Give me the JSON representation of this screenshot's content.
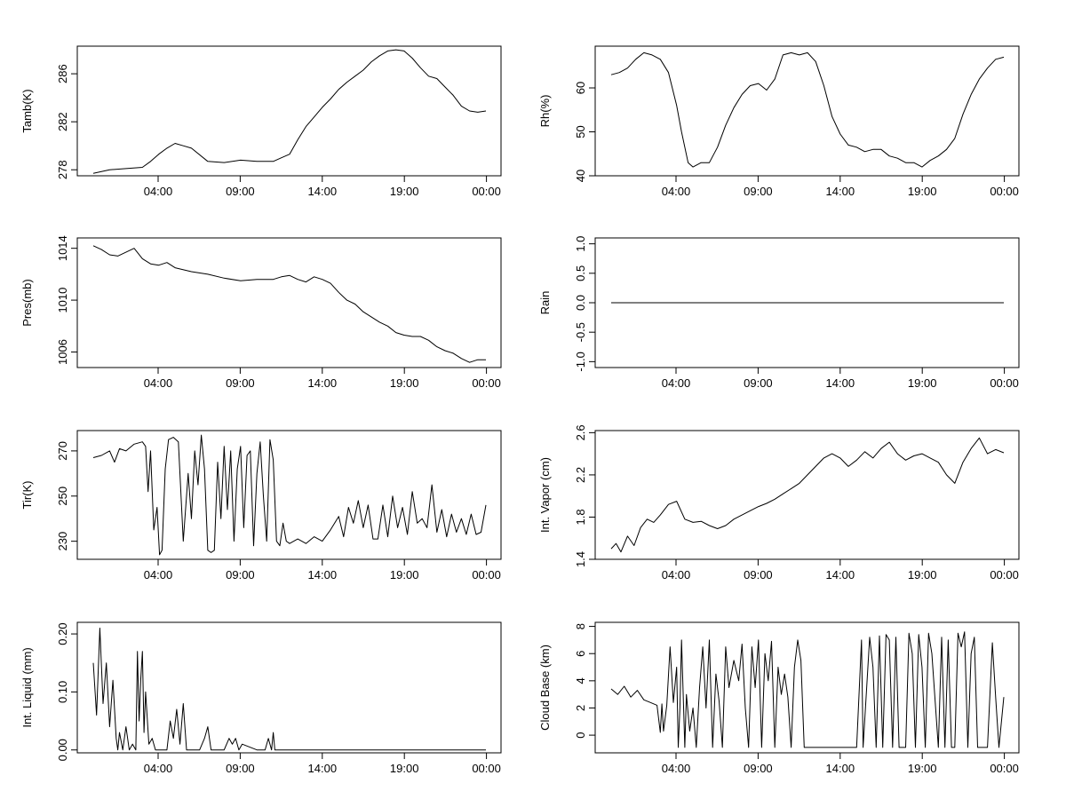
{
  "chart_data": [
    {
      "id": "tamb",
      "type": "line",
      "ylabel": "Tamb(K)",
      "ylim": [
        277.5,
        288.3
      ],
      "xticks": [
        "04:00",
        "09:00",
        "14:00",
        "19:00",
        "00:00"
      ],
      "yticks": [
        "278",
        "282",
        "286"
      ],
      "grid": false,
      "x_hours": [
        0,
        1,
        2,
        3,
        3.5,
        4,
        4.5,
        5,
        5.5,
        6,
        7,
        8,
        9,
        10,
        11,
        11.5,
        12,
        12.5,
        13,
        13.5,
        14,
        14.5,
        15,
        15.5,
        16,
        16.5,
        17,
        17.5,
        18,
        18.5,
        19,
        19.5,
        20,
        20.5,
        21,
        21.5,
        22,
        22.5,
        23,
        23.5,
        24
      ],
      "values": [
        277.7,
        278.0,
        278.1,
        278.2,
        278.7,
        279.3,
        279.8,
        280.2,
        280.0,
        279.8,
        278.7,
        278.6,
        278.8,
        278.7,
        278.7,
        279.0,
        279.3,
        280.5,
        281.6,
        282.4,
        283.2,
        283.9,
        284.7,
        285.3,
        285.8,
        286.3,
        287.0,
        287.5,
        287.9,
        288.0,
        287.9,
        287.3,
        286.5,
        285.8,
        285.6,
        284.9,
        284.2,
        283.3,
        282.9,
        282.8,
        282.9
      ]
    },
    {
      "id": "rh",
      "type": "line",
      "ylabel": "Rh(%)",
      "ylim": [
        40,
        69.5
      ],
      "xticks": [
        "04:00",
        "09:00",
        "14:00",
        "19:00",
        "00:00"
      ],
      "yticks": [
        "40",
        "50",
        "60"
      ],
      "grid": false,
      "x_hours": [
        0,
        0.5,
        1,
        1.5,
        2,
        2.5,
        3,
        3.5,
        4,
        4.3,
        4.7,
        5,
        5.5,
        6,
        6.5,
        7,
        7.5,
        8,
        8.5,
        9,
        9.5,
        10,
        10.5,
        11,
        11.5,
        12,
        12.5,
        13,
        13.5,
        14,
        14.5,
        15,
        15.5,
        16,
        16.5,
        17,
        17.5,
        18,
        18.5,
        19,
        19.5,
        20,
        20.5,
        21,
        21.5,
        22,
        22.5,
        23,
        23.5,
        24
      ],
      "values": [
        63.0,
        63.5,
        64.5,
        66.5,
        68.0,
        67.5,
        66.5,
        63.5,
        56.0,
        50.0,
        43.0,
        42.0,
        43.0,
        43.0,
        46.5,
        51.5,
        55.5,
        58.5,
        60.5,
        61.0,
        59.5,
        62.0,
        67.5,
        68.0,
        67.5,
        68.0,
        66.0,
        60.5,
        53.5,
        49.5,
        47.0,
        46.5,
        45.5,
        46.0,
        46.0,
        44.5,
        44.0,
        43.0,
        43.0,
        42.0,
        43.5,
        44.5,
        46.0,
        48.5,
        54.0,
        58.5,
        62.0,
        64.5,
        66.5,
        67.0
      ]
    },
    {
      "id": "pres",
      "type": "line",
      "ylabel": "Pres(mb)",
      "ylim": [
        1004.8,
        1014.8
      ],
      "xticks": [
        "04:00",
        "09:00",
        "14:00",
        "19:00",
        "00:00"
      ],
      "yticks": [
        "1006",
        "1010",
        "1014"
      ],
      "grid": false,
      "x_hours": [
        0,
        0.5,
        1,
        1.5,
        2,
        2.5,
        3,
        3.5,
        4,
        4.5,
        5,
        6,
        7,
        8,
        9,
        10,
        11,
        11.5,
        12,
        12.5,
        13,
        13.5,
        14,
        14.5,
        15,
        15.5,
        16,
        16.5,
        17,
        17.5,
        18,
        18.5,
        19,
        19.5,
        20,
        20.5,
        21,
        21.5,
        22,
        22.5,
        23,
        23.5,
        24
      ],
      "values": [
        1014.2,
        1013.9,
        1013.5,
        1013.4,
        1013.7,
        1014.0,
        1013.2,
        1012.8,
        1012.7,
        1012.9,
        1012.5,
        1012.2,
        1012.0,
        1011.7,
        1011.5,
        1011.6,
        1011.6,
        1011.8,
        1011.9,
        1011.6,
        1011.4,
        1011.8,
        1011.6,
        1011.3,
        1010.6,
        1010.0,
        1009.7,
        1009.1,
        1008.7,
        1008.3,
        1008.0,
        1007.5,
        1007.3,
        1007.2,
        1007.2,
        1006.9,
        1006.4,
        1006.1,
        1005.9,
        1005.5,
        1005.2,
        1005.4,
        1005.4
      ]
    },
    {
      "id": "rain",
      "type": "line",
      "ylabel": "Rain",
      "ylim": [
        -1.1,
        1.1
      ],
      "xticks": [
        "04:00",
        "09:00",
        "14:00",
        "19:00",
        "00:00"
      ],
      "yticks": [
        "-1.0",
        "-0.5",
        "0.0",
        "0.5",
        "1.0"
      ],
      "grid": false,
      "x_hours": [
        0,
        24
      ],
      "values": [
        0,
        0
      ]
    },
    {
      "id": "tir",
      "type": "line",
      "ylabel": "Tir(K)",
      "ylim": [
        222,
        279
      ],
      "xticks": [
        "04:00",
        "09:00",
        "14:00",
        "19:00",
        "00:00"
      ],
      "yticks": [
        "230",
        "250",
        "270"
      ],
      "grid": false,
      "x_hours": [
        0,
        0.5,
        1,
        1.3,
        1.6,
        2,
        2.5,
        3,
        3.2,
        3.35,
        3.5,
        3.7,
        3.9,
        4.05,
        4.2,
        4.4,
        4.6,
        4.9,
        5.2,
        5.5,
        5.8,
        6.0,
        6.2,
        6.4,
        6.6,
        6.8,
        7.0,
        7.2,
        7.4,
        7.6,
        7.8,
        8.0,
        8.2,
        8.4,
        8.6,
        8.8,
        9.0,
        9.2,
        9.4,
        9.6,
        9.8,
        10.0,
        10.2,
        10.4,
        10.6,
        10.8,
        11.0,
        11.2,
        11.4,
        11.6,
        11.8,
        12.0,
        12.5,
        13.0,
        13.5,
        14.0,
        14.5,
        15.0,
        15.3,
        15.6,
        15.9,
        16.2,
        16.5,
        16.8,
        17.1,
        17.4,
        17.7,
        18.0,
        18.3,
        18.6,
        18.9,
        19.2,
        19.5,
        19.8,
        20.1,
        20.4,
        20.7,
        21.0,
        21.3,
        21.6,
        21.9,
        22.2,
        22.5,
        22.8,
        23.1,
        23.4,
        23.7,
        24
      ],
      "values": [
        267,
        268,
        270,
        265,
        271,
        270,
        273,
        274,
        272,
        252,
        270,
        235,
        245,
        224,
        226,
        262,
        275,
        276,
        274,
        230,
        260,
        240,
        270,
        255,
        277,
        262,
        226,
        225,
        226,
        265,
        240,
        272,
        244,
        270,
        230,
        262,
        272,
        236,
        268,
        270,
        228,
        260,
        274,
        250,
        230,
        275,
        266,
        230,
        228,
        238,
        230,
        229,
        231,
        229,
        232,
        230,
        235,
        241,
        232,
        245,
        238,
        248,
        236,
        246,
        231,
        231,
        246,
        232,
        250,
        236,
        245,
        233,
        252,
        238,
        240,
        236,
        255,
        234,
        244,
        232,
        242,
        234,
        240,
        233,
        242,
        233,
        234,
        246
      ]
    },
    {
      "id": "vapor",
      "type": "line",
      "ylabel": "Int. Vapor (cm)",
      "ylim": [
        1.4,
        2.62
      ],
      "xticks": [
        "04:00",
        "09:00",
        "14:00",
        "19:00",
        "00:00"
      ],
      "yticks": [
        "1.4",
        "1.8",
        "2.2",
        "2.6"
      ],
      "grid": false,
      "x_hours": [
        0,
        0.3,
        0.6,
        1.0,
        1.4,
        1.8,
        2.2,
        2.6,
        3.0,
        3.5,
        4.0,
        4.5,
        5.0,
        5.5,
        6.0,
        6.5,
        7.0,
        7.5,
        8.0,
        8.5,
        9.0,
        9.5,
        10.0,
        10.5,
        11.0,
        11.5,
        12.0,
        12.5,
        13.0,
        13.5,
        14.0,
        14.5,
        15.0,
        15.5,
        16.0,
        16.5,
        17.0,
        17.5,
        18.0,
        18.5,
        19.0,
        19.5,
        20.0,
        20.5,
        21.0,
        21.5,
        22.0,
        22.5,
        23.0,
        23.5,
        24
      ],
      "values": [
        1.5,
        1.55,
        1.47,
        1.62,
        1.53,
        1.7,
        1.78,
        1.75,
        1.82,
        1.92,
        1.95,
        1.78,
        1.75,
        1.76,
        1.72,
        1.69,
        1.72,
        1.78,
        1.82,
        1.86,
        1.9,
        1.93,
        1.97,
        2.02,
        2.07,
        2.12,
        2.2,
        2.28,
        2.36,
        2.4,
        2.36,
        2.28,
        2.34,
        2.42,
        2.36,
        2.45,
        2.51,
        2.4,
        2.34,
        2.38,
        2.4,
        2.36,
        2.32,
        2.2,
        2.12,
        2.32,
        2.45,
        2.55,
        2.4,
        2.44,
        2.41
      ]
    },
    {
      "id": "liquid",
      "type": "line",
      "ylabel": "Int. Liquid (mm)",
      "ylim": [
        -0.005,
        0.22
      ],
      "xticks": [
        "04:00",
        "09:00",
        "14:00",
        "19:00",
        "00:00"
      ],
      "yticks": [
        "0.00",
        "0.10",
        "0.20"
      ],
      "grid": false,
      "x_hours": [
        0,
        0.2,
        0.4,
        0.6,
        0.8,
        1.0,
        1.2,
        1.4,
        1.5,
        1.6,
        1.8,
        2.0,
        2.2,
        2.4,
        2.6,
        2.7,
        2.8,
        2.9,
        3.0,
        3.1,
        3.2,
        3.4,
        3.6,
        3.8,
        4.0,
        4.5,
        4.7,
        4.9,
        5.1,
        5.3,
        5.5,
        5.7,
        6.0,
        6.5,
        6.8,
        7.0,
        7.2,
        8.0,
        8.3,
        8.5,
        8.7,
        8.9,
        9.1,
        10.0,
        10.5,
        10.7,
        10.9,
        11.0,
        11.1,
        11.3,
        12.0,
        18.0,
        24
      ],
      "values": [
        0.15,
        0.06,
        0.21,
        0.08,
        0.15,
        0.04,
        0.12,
        0.02,
        0.0,
        0.03,
        0.0,
        0.04,
        0.0,
        0.01,
        0.0,
        0.17,
        0.05,
        0.12,
        0.17,
        0.03,
        0.1,
        0.01,
        0.02,
        0.0,
        0.0,
        0.0,
        0.05,
        0.02,
        0.07,
        0.01,
        0.08,
        0.0,
        0.0,
        0.0,
        0.02,
        0.04,
        0.0,
        0.0,
        0.02,
        0.01,
        0.02,
        0.0,
        0.01,
        0.0,
        0.0,
        0.02,
        0.0,
        0.03,
        0.0,
        0.0,
        0.0,
        0.0,
        0.0
      ]
    },
    {
      "id": "cloudbase",
      "type": "line",
      "ylabel": "Cloud Base (km)",
      "ylim": [
        -1.3,
        8.3
      ],
      "xticks": [
        "04:00",
        "09:00",
        "14:00",
        "19:00",
        "00:00"
      ],
      "yticks": [
        "0",
        "2",
        "4",
        "6",
        "8"
      ],
      "grid": false,
      "x_hours": [
        0,
        0.4,
        0.8,
        1.2,
        1.6,
        2.0,
        2.4,
        2.8,
        3.0,
        3.1,
        3.2,
        3.4,
        3.6,
        3.8,
        4.0,
        4.1,
        4.2,
        4.3,
        4.5,
        4.6,
        4.8,
        5.0,
        5.2,
        5.4,
        5.6,
        5.8,
        6.0,
        6.2,
        6.4,
        6.6,
        6.8,
        7.0,
        7.2,
        7.5,
        7.8,
        8.0,
        8.2,
        8.4,
        8.6,
        8.8,
        9.0,
        9.2,
        9.4,
        9.6,
        9.8,
        10.0,
        10.2,
        10.4,
        10.6,
        10.8,
        11.0,
        11.2,
        11.4,
        11.6,
        11.8,
        12.0,
        15.0,
        15.3,
        15.4,
        15.8,
        16.0,
        16.2,
        16.4,
        16.6,
        16.8,
        17.0,
        17.2,
        17.4,
        17.6,
        18.0,
        18.2,
        18.4,
        18.6,
        18.8,
        19.0,
        19.2,
        19.4,
        19.6,
        20.0,
        20.2,
        20.4,
        20.6,
        20.8,
        21.0,
        21.2,
        21.4,
        21.6,
        21.8,
        22.0,
        22.2,
        22.4,
        23.0,
        23.3,
        23.5,
        23.7,
        24
      ],
      "values": [
        3.4,
        3.0,
        3.6,
        2.8,
        3.3,
        2.6,
        2.4,
        2.2,
        0.2,
        2.3,
        0.3,
        2.2,
        6.5,
        2.4,
        5.0,
        -0.9,
        2.0,
        7.0,
        -0.9,
        3.0,
        0.3,
        2.0,
        -0.9,
        3.5,
        6.5,
        2.0,
        7.0,
        -0.9,
        4.5,
        2.5,
        -0.9,
        6.5,
        3.5,
        5.5,
        4.0,
        6.7,
        2.0,
        -0.9,
        6.5,
        3.5,
        7.0,
        -0.9,
        6.0,
        4.0,
        6.9,
        -0.9,
        5.0,
        3.0,
        4.5,
        2.8,
        -0.9,
        5.0,
        7.0,
        5.5,
        -0.9,
        -0.9,
        -0.9,
        7.0,
        -0.9,
        7.2,
        5.0,
        -0.9,
        7.3,
        -0.9,
        7.4,
        7.0,
        -0.9,
        7.2,
        -0.9,
        -0.9,
        7.5,
        6.0,
        -0.9,
        7.4,
        5.0,
        -0.9,
        7.5,
        6.0,
        -0.9,
        7.2,
        -0.9,
        7.0,
        -0.9,
        -0.9,
        7.5,
        6.5,
        7.6,
        -0.9,
        6.0,
        7.2,
        -0.9,
        -0.9,
        6.8,
        2.8,
        -0.9,
        2.8
      ]
    }
  ]
}
